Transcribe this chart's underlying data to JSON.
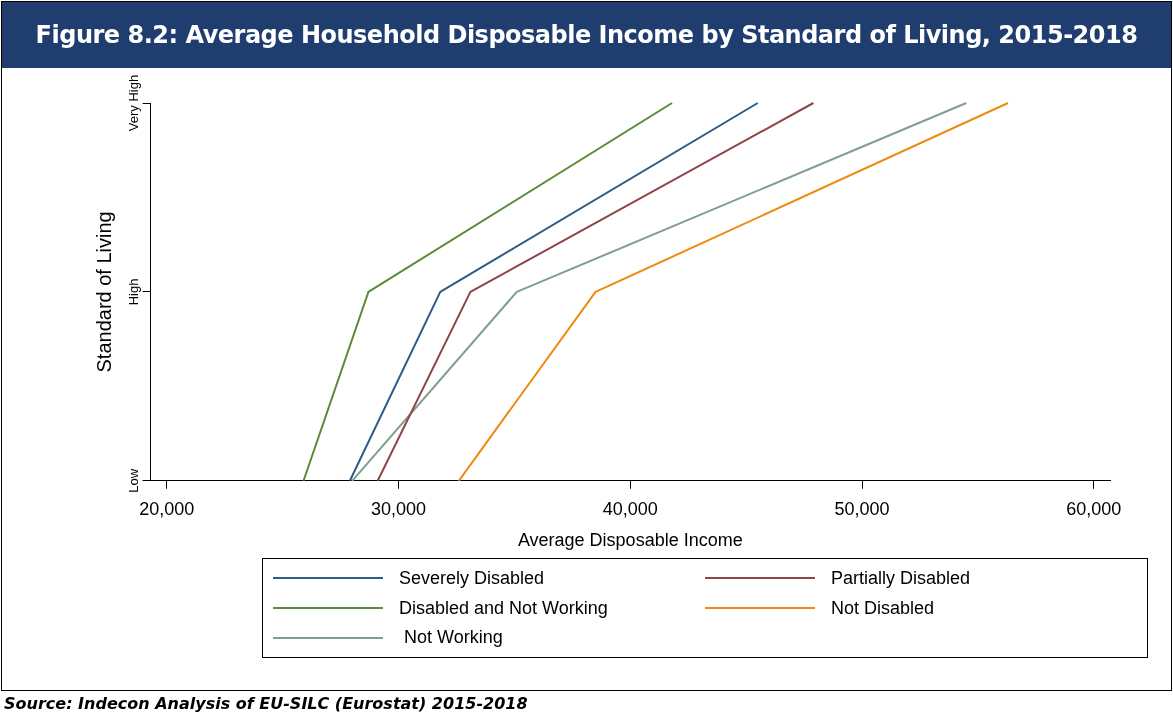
{
  "chart_data": {
    "type": "line",
    "orientation": "horizontal",
    "title": "Figure 8.2: Average Household Disposable Income by Standard of Living, 2015-2018",
    "xlabel": "Average Disposable Income",
    "ylabel": "Standard of Living",
    "categories": [
      "Very High",
      "High",
      "Low"
    ],
    "series": [
      {
        "name": "Severely Disabled",
        "color": "#2e5a87",
        "values": [
          45500,
          31800,
          27900
        ]
      },
      {
        "name": "Partially Disabled",
        "color": "#904348",
        "values": [
          47900,
          33100,
          29100
        ]
      },
      {
        "name": "Disabled and Not Working",
        "color": "#5d8a35",
        "values": [
          41800,
          28700,
          25900
        ]
      },
      {
        "name": "Not Disabled",
        "color": "#ee8a10",
        "values": [
          56300,
          38500,
          32600
        ]
      },
      {
        "name": " Not Working",
        "color": "#7f9f8f",
        "values": [
          54500,
          35100,
          28000
        ]
      }
    ],
    "xlim": [
      19300,
      60700
    ],
    "xticks": [
      {
        "value": 20000,
        "label": "20,000"
      },
      {
        "value": 30000,
        "label": "30,000"
      },
      {
        "value": 40000,
        "label": "40,000"
      },
      {
        "value": 50000,
        "label": "50,000"
      },
      {
        "value": 60000,
        "label": "60,000"
      }
    ],
    "grid": false,
    "legend": "bottom",
    "marker": "none",
    "line_style": "solid",
    "annotations": [
      "Source: Indecon Analysis of EU-SILC (Eurostat) 2015-2018"
    ]
  }
}
